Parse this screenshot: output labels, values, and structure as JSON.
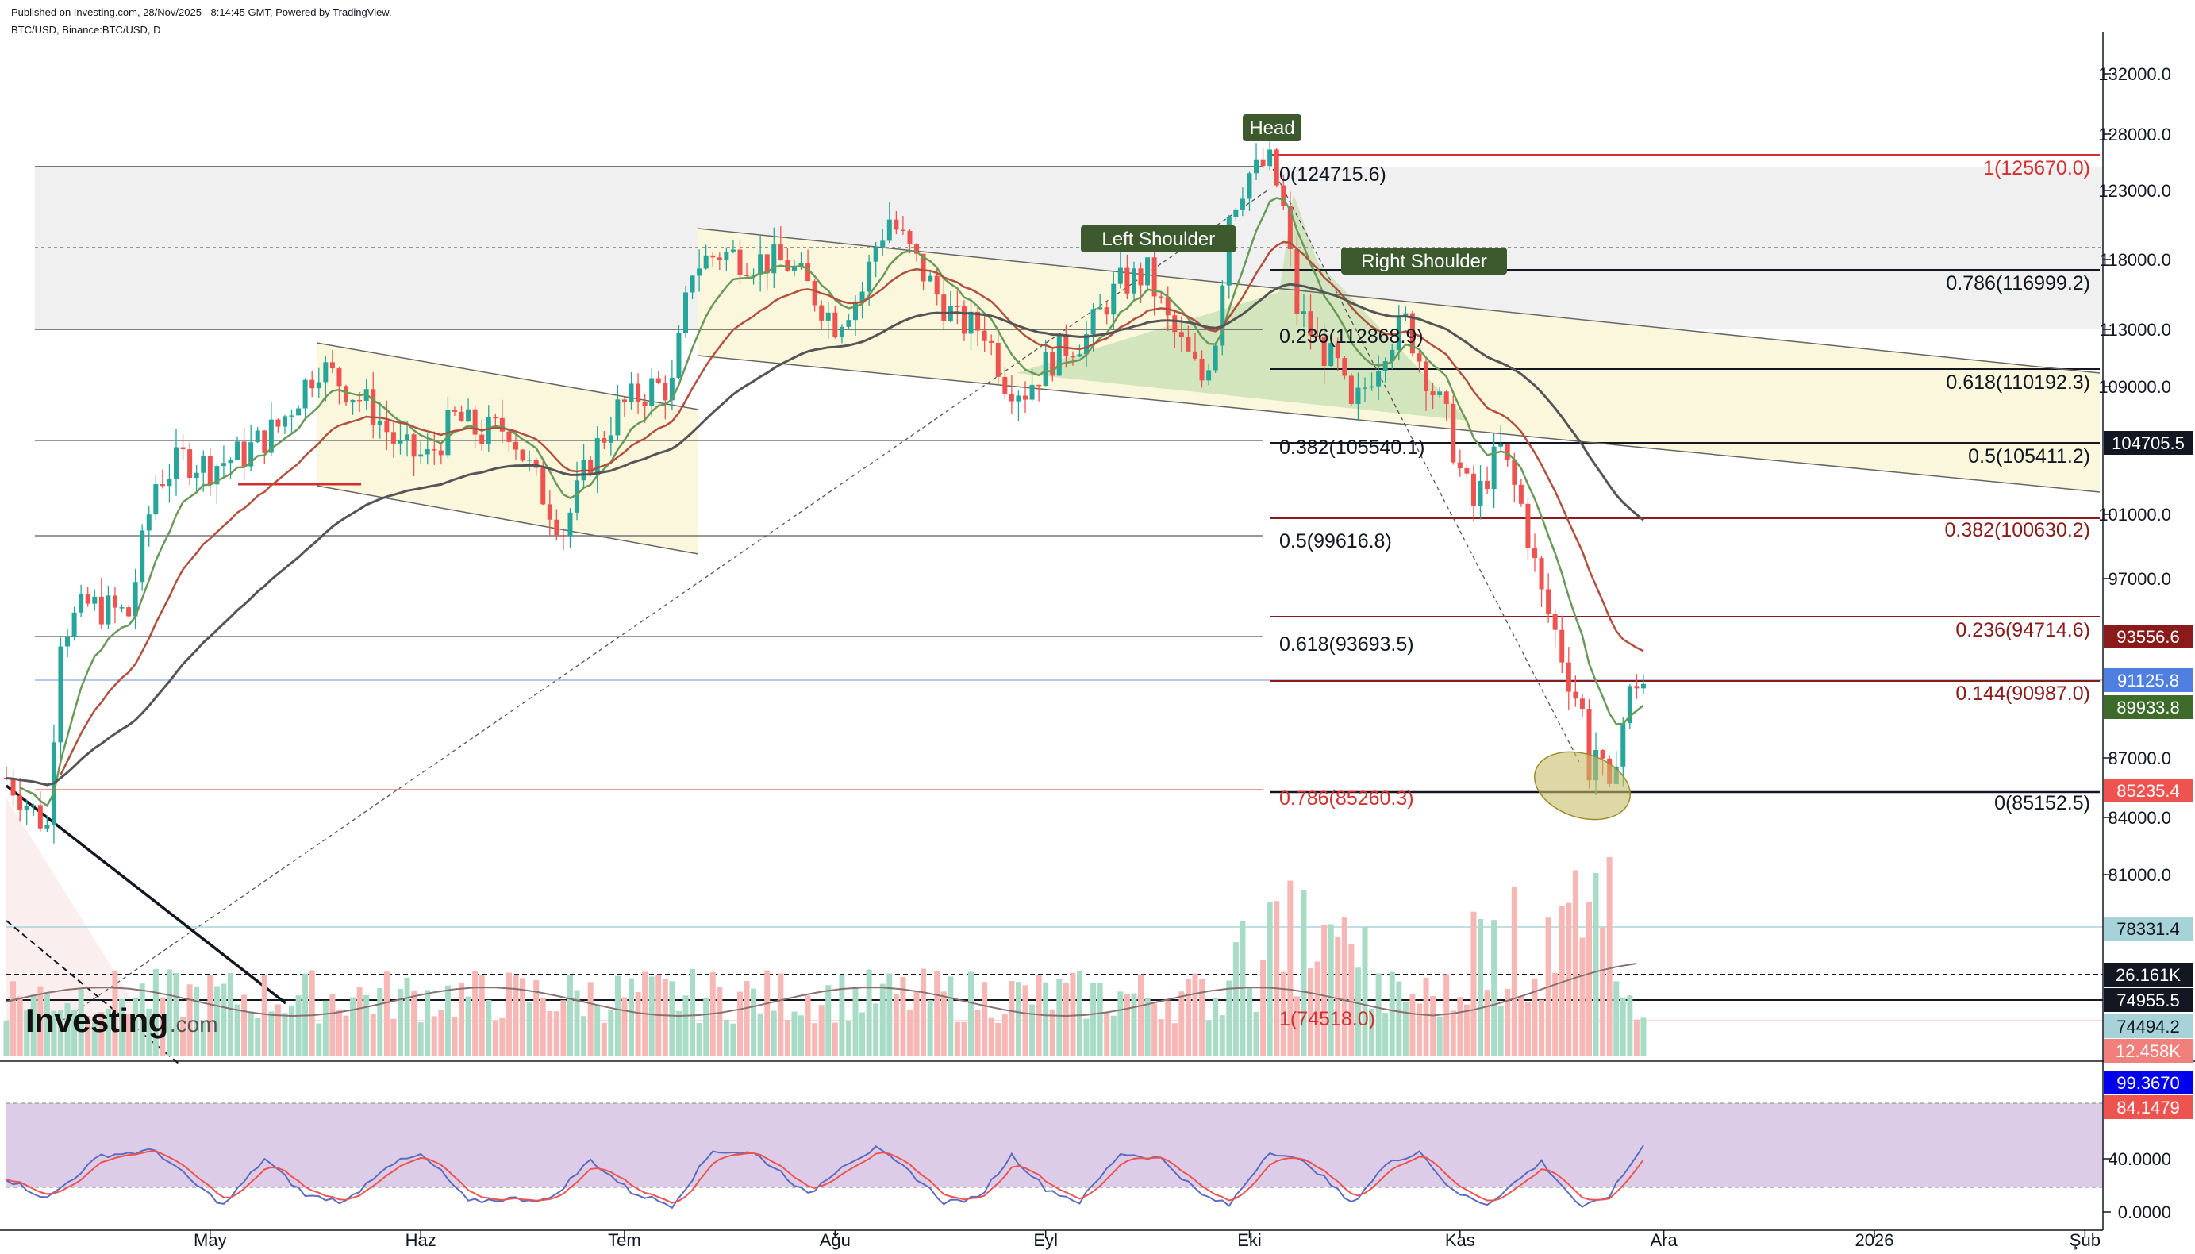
{
  "header": {
    "published": "Published on Investing.com, 28/Nov/2025 - 8:14:45 GMT, Powered by TradingView.",
    "symbol": "BTC/USD, Binance:BTC/USD, D"
  },
  "logo": {
    "main": "Investing",
    "suffix": ".com"
  },
  "colors": {
    "up": "#26a69a",
    "down": "#ef5350",
    "ema_short": "#6a9a5a",
    "ema_mid": "#b25040",
    "ema_long": "#555555",
    "fib_red": "#d32f2f",
    "fib_dark": "#8b1a1a",
    "label_bg": "#3d5a2e",
    "stoch_k": "#5c6bc0",
    "stoch_d": "#ef5350",
    "stoch_band": "#d9c6e6"
  },
  "chart_data": {
    "type": "candlestick",
    "price_axis": {
      "range": [
        73500,
        133000
      ],
      "ticks": [
        "132000.0",
        "128000.0",
        "123000.0",
        "118000.0",
        "113000.0",
        "109000.0",
        "101000.0",
        "97000.0",
        "87000.0",
        "84000.0",
        "81000.0"
      ]
    },
    "time_axis": {
      "ticks": [
        {
          "label": "May",
          "day": 30
        },
        {
          "label": "Haz",
          "day": 61
        },
        {
          "label": "Tem",
          "day": 91
        },
        {
          "label": "Ağu",
          "day": 122
        },
        {
          "label": "Eyl",
          "day": 153
        },
        {
          "label": "Eki",
          "day": 183
        },
        {
          "label": "Kas",
          "day": 214
        },
        {
          "label": "Ara",
          "day": 244
        },
        {
          "label": "2026",
          "day": 275
        },
        {
          "label": "Şub",
          "day": 306
        }
      ]
    },
    "price_path": [
      [
        0,
        86000
      ],
      [
        6,
        83500
      ],
      [
        8,
        94000
      ],
      [
        12,
        95500
      ],
      [
        18,
        95000
      ],
      [
        22,
        103000
      ],
      [
        26,
        104500
      ],
      [
        30,
        104000
      ],
      [
        35,
        104800
      ],
      [
        40,
        106500
      ],
      [
        46,
        110500
      ],
      [
        50,
        109000
      ],
      [
        54,
        107500
      ],
      [
        58,
        105000
      ],
      [
        62,
        104500
      ],
      [
        66,
        107000
      ],
      [
        70,
        106000
      ],
      [
        74,
        106500
      ],
      [
        78,
        103000
      ],
      [
        82,
        100000
      ],
      [
        86,
        104500
      ],
      [
        90,
        107500
      ],
      [
        95,
        109000
      ],
      [
        98,
        109000
      ],
      [
        101,
        117500
      ],
      [
        105,
        118500
      ],
      [
        110,
        118000
      ],
      [
        115,
        117700
      ],
      [
        118,
        116000
      ],
      [
        122,
        113500
      ],
      [
        126,
        115800
      ],
      [
        128,
        119000
      ],
      [
        130,
        121000
      ],
      [
        133,
        118500
      ],
      [
        137,
        115500
      ],
      [
        140,
        113500
      ],
      [
        144,
        113000
      ],
      [
        147,
        109500
      ],
      [
        150,
        108800
      ],
      [
        153,
        110500
      ],
      [
        156,
        111800
      ],
      [
        159,
        112500
      ],
      [
        162,
        115000
      ],
      [
        164,
        116200
      ],
      [
        168,
        117000
      ],
      [
        171,
        113500
      ],
      [
        174,
        111000
      ],
      [
        176,
        109500
      ],
      [
        178,
        112500
      ],
      [
        180,
        121500
      ],
      [
        183,
        124500
      ],
      [
        186,
        125500
      ],
      [
        188,
        121500
      ],
      [
        190,
        114500
      ],
      [
        193,
        112000
      ],
      [
        196,
        110300
      ],
      [
        198,
        107200
      ],
      [
        200,
        109000
      ],
      [
        203,
        112000
      ],
      [
        206,
        113500
      ],
      [
        208,
        111000
      ],
      [
        210,
        108800
      ],
      [
        212,
        106800
      ],
      [
        214,
        103700
      ],
      [
        216,
        101500
      ],
      [
        218,
        103500
      ],
      [
        220,
        105000
      ],
      [
        223,
        101500
      ],
      [
        226,
        96000
      ],
      [
        228,
        94000
      ],
      [
        230,
        91500
      ],
      [
        232,
        89500
      ],
      [
        233,
        86500
      ],
      [
        234,
        87500
      ],
      [
        236,
        84800
      ],
      [
        237,
        87500
      ],
      [
        239,
        90500
      ],
      [
        240,
        91300
      ],
      [
        241,
        91125.8
      ]
    ],
    "volume": {
      "labels": [
        "78331.4",
        "26.161K",
        "74955.5",
        "74494.2",
        "12.458K"
      ]
    },
    "stochastic": {
      "ticks": [
        "40.0000",
        "0.0000"
      ],
      "k_last": "99.3670",
      "d_last": "84.1479",
      "upper": 80,
      "lower": 20
    },
    "fib_left": [
      "0(124715.6)",
      "0.236(112868.9)",
      "0.382(105540.1)",
      "0.5(99616.8)",
      "0.618(93693.5)",
      "0.786(85260.3)",
      "1(74518.0)"
    ],
    "fib_right": [
      "1(125670.0)",
      "0.786(116999.2)",
      "0.618(110192.3)",
      "0.5(105411.2)",
      "0.382(100630.2)",
      "0.236(94714.6)",
      "0.144(90987.0)",
      "0(85152.5)"
    ],
    "price_labels": [
      {
        "text": "104705.5",
        "bg": "#131722"
      },
      {
        "text": "93556.6",
        "bg": "#8b1a1a"
      },
      {
        "text": "91125.8",
        "bg": "#4f7fe0"
      },
      {
        "text": "89933.8",
        "bg": "#3d6b2a"
      },
      {
        "text": "85235.4",
        "bg": "#ef5350"
      }
    ],
    "pattern_labels": [
      "Head",
      "Left Shoulder",
      "Right Shoulder"
    ]
  }
}
